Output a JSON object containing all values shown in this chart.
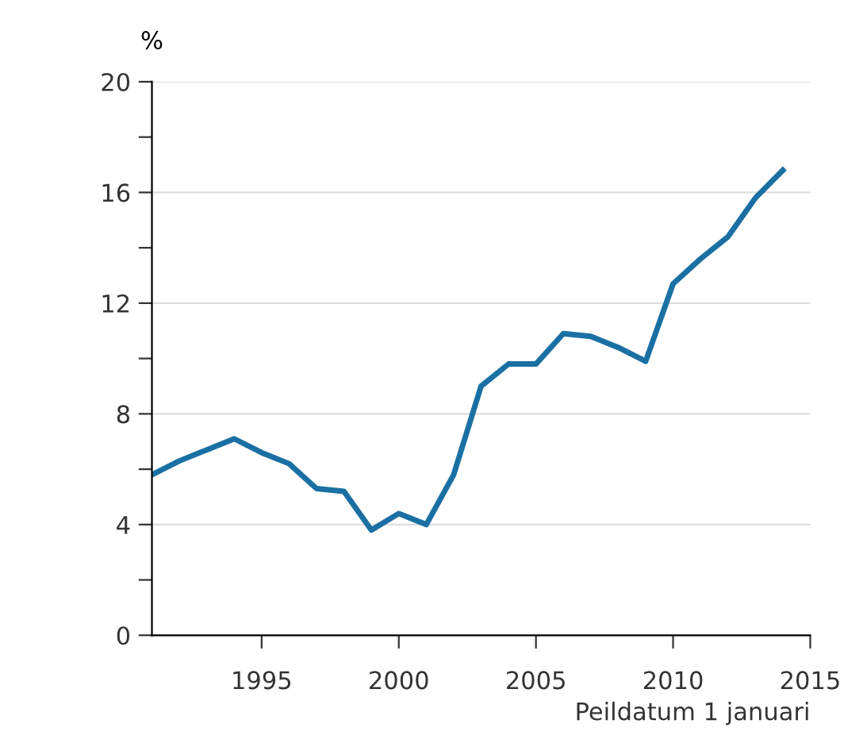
{
  "chart_data": {
    "type": "line",
    "ylabel": "%",
    "xlabel": "Peildatum 1 januari",
    "x": [
      1991,
      1992,
      1993,
      1994,
      1995,
      1996,
      1997,
      1998,
      1999,
      2000,
      2001,
      2002,
      2003,
      2004,
      2005,
      2006,
      2007,
      2008,
      2009,
      2010,
      2011,
      2012,
      2013,
      2014
    ],
    "series": [
      {
        "color": "#1a70a3",
        "values": [
          5.8,
          6.3,
          6.7,
          7.1,
          6.6,
          6.2,
          5.3,
          5.2,
          3.8,
          4.4,
          4.0,
          5.8,
          9.0,
          9.8,
          9.8,
          10.9,
          10.8,
          10.4,
          9.9,
          12.7,
          13.6,
          14.4,
          15.8,
          16.8
        ]
      }
    ],
    "xlim": [
      1991,
      2015
    ],
    "xticks": [
      1995,
      2000,
      2005,
      2010,
      2015
    ],
    "ylim": [
      0,
      20
    ],
    "yticks": [
      0,
      {
        "value": 2,
        "label": null
      },
      4,
      {
        "value": 6,
        "label": null
      },
      8,
      {
        "value": 10,
        "label": null
      },
      12,
      {
        "value": 14,
        "label": null
      },
      16,
      {
        "value": 18,
        "label": null
      },
      20
    ],
    "grid": "y",
    "legend": false,
    "marker": "none",
    "line_style": "solid"
  }
}
